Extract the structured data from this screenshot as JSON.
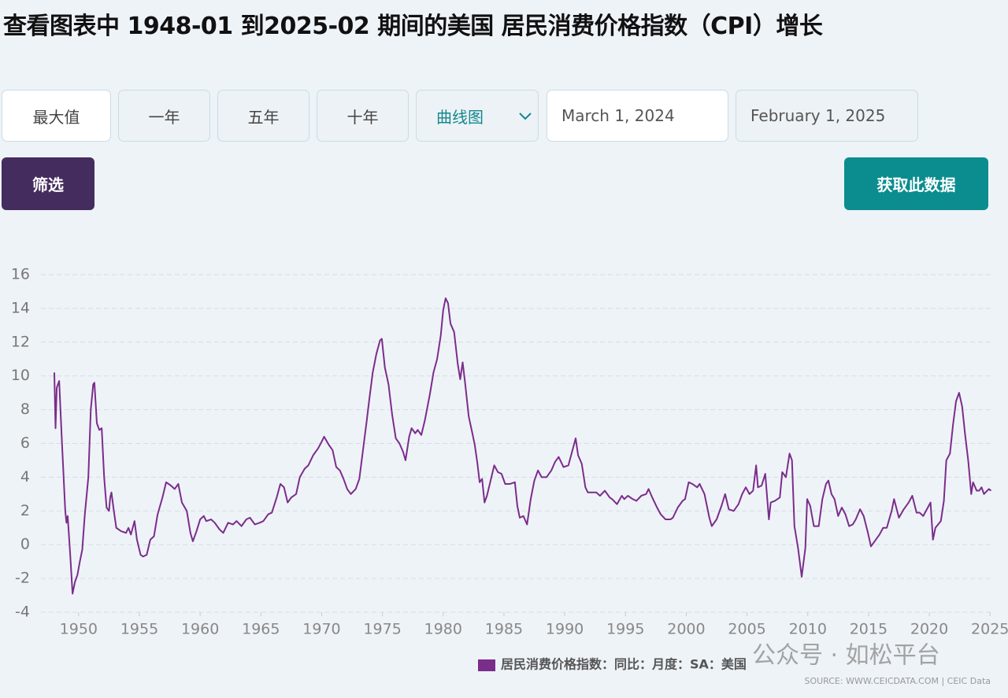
{
  "header": {
    "title": "查看图表中 1948-01 到2025-02 期间的美国 居民消费价格指数（CPI）增长"
  },
  "controls": {
    "ranges": [
      "最大值",
      "一年",
      "五年",
      "十年"
    ],
    "chart_type": "曲线图",
    "start_date": "March 1, 2024",
    "end_date": "February 1, 2025",
    "filter": "筛选",
    "get_data": "获取此数据"
  },
  "chart_data": {
    "type": "line",
    "x": [
      1948.0,
      1948.1,
      1948.2,
      1948.4,
      1948.6,
      1948.9,
      1949.0,
      1949.1,
      1949.3,
      1949.5,
      1949.7,
      1949.9,
      1950.1,
      1950.3,
      1950.5,
      1950.8,
      1951.0,
      1951.2,
      1951.3,
      1951.5,
      1951.7,
      1951.9,
      1952.1,
      1952.3,
      1952.5,
      1952.6,
      1952.7,
      1952.9,
      1953.1,
      1953.5,
      1953.9,
      1954.1,
      1954.3,
      1954.6,
      1954.8,
      1955.1,
      1955.3,
      1955.6,
      1955.9,
      1956.2,
      1956.5,
      1956.9,
      1957.2,
      1957.6,
      1957.9,
      1958.2,
      1958.5,
      1958.9,
      1959.2,
      1959.4,
      1959.7,
      1960.0,
      1960.3,
      1960.5,
      1960.9,
      1961.2,
      1961.6,
      1961.9,
      1962.3,
      1962.7,
      1963.0,
      1963.4,
      1963.8,
      1964.1,
      1964.5,
      1964.9,
      1965.2,
      1965.6,
      1965.9,
      1966.3,
      1966.6,
      1966.9,
      1967.2,
      1967.5,
      1967.9,
      1968.2,
      1968.6,
      1968.9,
      1969.3,
      1969.7,
      1970.0,
      1970.2,
      1970.6,
      1970.9,
      1971.2,
      1971.5,
      1971.8,
      1972.1,
      1972.4,
      1972.8,
      1973.1,
      1973.4,
      1973.7,
      1973.9,
      1974.2,
      1974.5,
      1974.8,
      1974.95,
      1975.2,
      1975.5,
      1975.8,
      1976.1,
      1976.4,
      1976.7,
      1976.9,
      1977.2,
      1977.4,
      1977.7,
      1977.9,
      1978.2,
      1978.5,
      1978.9,
      1979.2,
      1979.5,
      1979.8,
      1980.0,
      1980.2,
      1980.4,
      1980.6,
      1980.9,
      1981.2,
      1981.4,
      1981.6,
      1981.8,
      1982.1,
      1982.4,
      1982.6,
      1982.8,
      1983.0,
      1983.2,
      1983.4,
      1983.6,
      1983.9,
      1984.2,
      1984.5,
      1984.8,
      1985.1,
      1985.5,
      1985.9,
      1986.1,
      1986.3,
      1986.6,
      1986.9,
      1987.2,
      1987.5,
      1987.8,
      1988.1,
      1988.5,
      1988.9,
      1989.2,
      1989.5,
      1989.9,
      1990.3,
      1990.6,
      1990.9,
      1991.1,
      1991.4,
      1991.7,
      1991.9,
      1992.2,
      1992.6,
      1992.9,
      1993.3,
      1993.7,
      1993.9,
      1994.3,
      1994.7,
      1994.9,
      1995.2,
      1995.6,
      1995.9,
      1996.3,
      1996.7,
      1996.9,
      1997.2,
      1997.6,
      1997.9,
      1998.3,
      1998.7,
      1998.9,
      1999.3,
      1999.7,
      1999.9,
      2000.2,
      2000.5,
      2000.9,
      2001.1,
      2001.5,
      2001.9,
      2002.1,
      2002.5,
      2002.9,
      2003.2,
      2003.5,
      2003.9,
      2004.3,
      2004.6,
      2004.9,
      2005.2,
      2005.5,
      2005.75,
      2005.9,
      2006.2,
      2006.5,
      2006.8,
      2006.95,
      2007.3,
      2007.7,
      2007.9,
      2008.2,
      2008.5,
      2008.7,
      2008.9,
      2009.2,
      2009.5,
      2009.8,
      2009.95,
      2010.2,
      2010.5,
      2010.9,
      2011.2,
      2011.5,
      2011.7,
      2011.95,
      2012.2,
      2012.5,
      2012.8,
      2013.1,
      2013.4,
      2013.7,
      2013.95,
      2014.3,
      2014.6,
      2014.95,
      2015.2,
      2015.5,
      2015.9,
      2016.2,
      2016.5,
      2016.9,
      2017.1,
      2017.5,
      2017.9,
      2018.3,
      2018.6,
      2018.95,
      2019.2,
      2019.5,
      2019.95,
      2020.1,
      2020.3,
      2020.5,
      2020.95,
      2021.2,
      2021.4,
      2021.7,
      2021.95,
      2022.2,
      2022.45,
      2022.7,
      2022.95,
      2023.2,
      2023.45,
      2023.6,
      2023.9,
      2024.1,
      2024.3,
      2024.5,
      2024.9,
      2025.08
    ],
    "series": [
      {
        "name": "居民消费价格指数：同比：月度：SA：美国",
        "color": "#7b2d8b",
        "values": [
          10.2,
          6.9,
          9.3,
          9.7,
          6.5,
          2.0,
          1.3,
          1.7,
          -0.5,
          -2.9,
          -2.2,
          -1.8,
          -1.0,
          -0.3,
          1.7,
          4.0,
          8.0,
          9.5,
          9.6,
          7.2,
          6.8,
          6.9,
          4.0,
          2.2,
          2.0,
          2.8,
          3.1,
          2.0,
          1.0,
          0.8,
          0.7,
          1.0,
          0.6,
          1.4,
          0.3,
          -0.6,
          -0.7,
          -0.6,
          0.3,
          0.5,
          1.8,
          2.8,
          3.7,
          3.5,
          3.3,
          3.6,
          2.5,
          2.0,
          0.7,
          0.2,
          0.8,
          1.5,
          1.7,
          1.4,
          1.5,
          1.3,
          0.9,
          0.7,
          1.3,
          1.2,
          1.4,
          1.1,
          1.5,
          1.6,
          1.2,
          1.3,
          1.4,
          1.8,
          1.9,
          2.8,
          3.6,
          3.4,
          2.5,
          2.8,
          3.0,
          4.0,
          4.5,
          4.7,
          5.3,
          5.7,
          6.1,
          6.4,
          5.9,
          5.6,
          4.6,
          4.4,
          3.9,
          3.3,
          3.0,
          3.3,
          3.9,
          5.6,
          7.3,
          8.5,
          10.2,
          11.3,
          12.1,
          12.2,
          10.5,
          9.5,
          7.7,
          6.3,
          6.0,
          5.5,
          5.0,
          6.4,
          6.9,
          6.6,
          6.8,
          6.5,
          7.4,
          8.9,
          10.2,
          11.0,
          12.4,
          13.9,
          14.6,
          14.3,
          13.1,
          12.6,
          10.7,
          9.8,
          10.8,
          9.6,
          7.6,
          6.6,
          5.9,
          4.9,
          3.7,
          3.9,
          2.5,
          2.9,
          3.8,
          4.7,
          4.3,
          4.2,
          3.6,
          3.6,
          3.7,
          2.3,
          1.6,
          1.7,
          1.2,
          2.7,
          3.8,
          4.4,
          4.0,
          4.0,
          4.4,
          4.9,
          5.2,
          4.6,
          4.7,
          5.5,
          6.3,
          5.3,
          4.8,
          3.4,
          3.1,
          3.1,
          3.1,
          2.9,
          3.2,
          2.8,
          2.7,
          2.4,
          2.9,
          2.7,
          2.9,
          2.7,
          2.6,
          2.9,
          3.0,
          3.3,
          2.8,
          2.2,
          1.8,
          1.5,
          1.5,
          1.6,
          2.2,
          2.6,
          2.7,
          3.7,
          3.6,
          3.4,
          3.6,
          3.0,
          1.6,
          1.1,
          1.5,
          2.3,
          3.0,
          2.1,
          2.0,
          2.4,
          3.0,
          3.4,
          3.0,
          3.2,
          4.7,
          3.4,
          3.5,
          4.2,
          1.5,
          2.5,
          2.6,
          2.8,
          4.3,
          4.0,
          5.4,
          5.0,
          1.1,
          -0.2,
          -1.9,
          -0.2,
          2.7,
          2.3,
          1.1,
          1.1,
          2.7,
          3.6,
          3.8,
          3.0,
          2.7,
          1.7,
          2.2,
          1.8,
          1.1,
          1.2,
          1.5,
          2.1,
          1.7,
          0.7,
          -0.1,
          0.2,
          0.6,
          1.0,
          1.0,
          2.0,
          2.7,
          1.6,
          2.1,
          2.5,
          2.9,
          1.9,
          1.9,
          1.7,
          2.3,
          2.5,
          0.3,
          1.0,
          1.4,
          2.6,
          5.0,
          5.4,
          7.1,
          8.5,
          9.0,
          8.2,
          6.5,
          5.0,
          3.0,
          3.7,
          3.2,
          3.2,
          3.4,
          3.0,
          3.3,
          3.2
        ]
      }
    ],
    "xlim": [
      1946.9,
      2025.05
    ],
    "ylim": [
      -4,
      16
    ],
    "xticks": [
      1950,
      1955,
      1960,
      1965,
      1970,
      1975,
      1980,
      1985,
      1990,
      1995,
      2000,
      2005,
      2010,
      2015,
      2020,
      2025
    ],
    "yticks": [
      -4,
      -2,
      0,
      2,
      4,
      6,
      8,
      10,
      12,
      14,
      16
    ],
    "grid": true,
    "source": "SOURCE: WWW.CEICDATA.COM | CEIC Data"
  },
  "watermark": "公众号 · 如松平台"
}
